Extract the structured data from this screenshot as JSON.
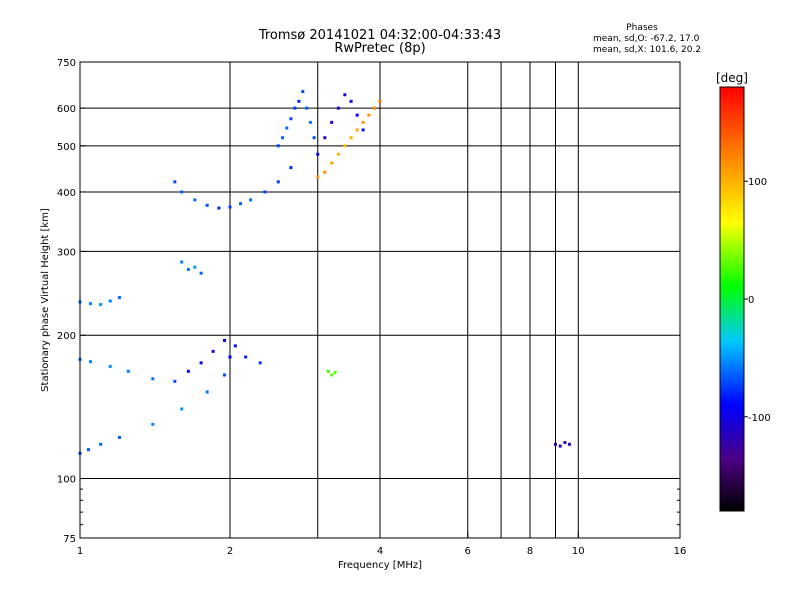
{
  "header": {
    "title_line1": "Tromsø 20141021 04:32:00-04:33:43",
    "title_line2": "RwPretec (8p)"
  },
  "phase_info": {
    "heading": "Phases",
    "line_o": "mean, sd,O: -67.2, 17.0",
    "line_x": "mean, sd,X: 101.6, 20.2"
  },
  "chart_data": {
    "type": "scatter",
    "xlabel": "Frequency [MHz]",
    "ylabel": "Stationary phase Virtual Height [km]",
    "x_scale": "log",
    "y_scale": "log",
    "xlim": [
      1,
      16
    ],
    "ylim": [
      75,
      750
    ],
    "x_ticks": [
      1,
      2,
      4,
      6,
      8,
      10,
      16
    ],
    "x_tick_labels": [
      "1",
      "2",
      "4",
      "6",
      "8",
      "10",
      "16"
    ],
    "x_minor_gridlines": [
      3,
      7,
      9
    ],
    "y_ticks": [
      75,
      100,
      200,
      300,
      400,
      500,
      600,
      750
    ],
    "y_tick_labels": [
      "75",
      "100",
      "200",
      "300",
      "400",
      "500",
      "600",
      "750"
    ],
    "grid": true,
    "colorbar": {
      "label": "[deg]",
      "range": [
        -180,
        180
      ],
      "ticks": [
        100,
        0,
        -100
      ],
      "tick_labels": [
        "100",
        "0",
        "-100"
      ]
    },
    "series": [
      {
        "x": [
          1.0,
          1.04,
          1.1,
          1.2,
          1.4,
          1.6,
          1.8,
          1.95,
          2.0
        ],
        "y": [
          113,
          115,
          118,
          122,
          130,
          140,
          152,
          165,
          180
        ],
        "phase": [
          -70,
          -65,
          -60,
          -65,
          -55,
          -50,
          -60,
          -70,
          -90
        ]
      },
      {
        "x": [
          1.0,
          1.05,
          1.15,
          1.25,
          1.4,
          1.55,
          1.65,
          1.75,
          1.85,
          1.95,
          2.05,
          2.15,
          2.3
        ],
        "y": [
          178,
          176,
          172,
          168,
          162,
          160,
          168,
          175,
          185,
          195,
          190,
          180,
          175
        ],
        "phase": [
          -60,
          -55,
          -50,
          -55,
          -60,
          -70,
          -90,
          -100,
          -110,
          -95,
          -85,
          -80,
          -75
        ]
      },
      {
        "x": [
          1.0,
          1.05,
          1.1,
          1.15,
          1.2
        ],
        "y": [
          235,
          233,
          232,
          236,
          240
        ],
        "phase": [
          -60,
          -55,
          -50,
          -55,
          -60
        ]
      },
      {
        "x": [
          1.6,
          1.65,
          1.7,
          1.75
        ],
        "y": [
          285,
          275,
          278,
          270
        ],
        "phase": [
          -55,
          -60,
          -50,
          -65
        ]
      },
      {
        "x": [
          1.55,
          1.6,
          1.7,
          1.8,
          1.9,
          2.0,
          2.1,
          2.2,
          2.35,
          2.5,
          2.65
        ],
        "y": [
          420,
          400,
          385,
          375,
          370,
          372,
          378,
          385,
          400,
          420,
          450
        ],
        "phase": [
          -70,
          -65,
          -60,
          -70,
          -80,
          -75,
          -65,
          -60,
          -70,
          -75,
          -80
        ]
      },
      {
        "x": [
          2.5,
          2.55,
          2.6,
          2.65,
          2.7,
          2.75,
          2.8,
          2.85,
          2.9,
          2.95
        ],
        "y": [
          500,
          520,
          545,
          570,
          600,
          620,
          650,
          600,
          560,
          520
        ],
        "phase": [
          -70,
          -65,
          -60,
          -70,
          -75,
          -80,
          -70,
          -65,
          -60,
          -70
        ]
      },
      {
        "x": [
          3.0,
          3.1,
          3.2,
          3.3,
          3.4,
          3.5,
          3.6,
          3.7,
          3.8,
          3.9,
          4.0
        ],
        "y": [
          430,
          440,
          460,
          480,
          500,
          520,
          540,
          560,
          580,
          600,
          620
        ],
        "phase": [
          110,
          115,
          105,
          100,
          95,
          100,
          105,
          110,
          115,
          120,
          125
        ]
      },
      {
        "x": [
          3.0,
          3.1,
          3.2,
          3.3,
          3.4,
          3.5,
          3.6,
          3.7
        ],
        "y": [
          480,
          520,
          560,
          600,
          640,
          620,
          580,
          540
        ],
        "phase": [
          -100,
          -110,
          -120,
          -115,
          -105,
          -95,
          -90,
          -85
        ]
      },
      {
        "x": [
          3.15,
          3.2,
          3.25
        ],
        "y": [
          168,
          165,
          167
        ],
        "phase": [
          25,
          30,
          28
        ]
      },
      {
        "x": [
          9.0,
          9.2,
          9.4,
          9.6
        ],
        "y": [
          118,
          117,
          119,
          118
        ],
        "phase": [
          -120,
          -125,
          -115,
          -110
        ]
      }
    ]
  }
}
